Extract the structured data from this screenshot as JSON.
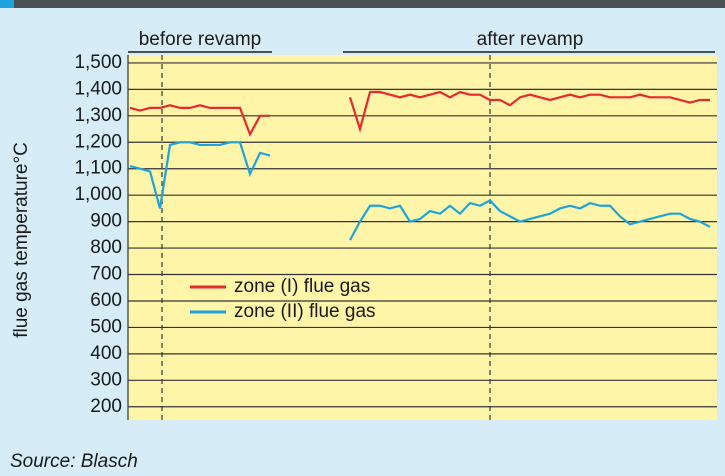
{
  "chart_data": {
    "type": "line",
    "header_labels": [
      "before revamp",
      "after revamp"
    ],
    "ylabel": "flue gas temperature°C",
    "source": "Source: Blasch",
    "x": [
      0,
      1,
      2,
      3,
      4,
      5,
      6,
      7,
      8,
      9,
      10,
      11,
      12,
      13,
      14,
      15,
      16,
      17,
      18,
      19,
      20,
      21,
      22,
      23,
      24,
      25,
      26,
      27,
      28,
      29,
      30,
      31,
      32,
      33,
      34,
      35,
      36,
      37,
      38,
      39,
      40,
      41,
      42,
      43,
      44,
      45,
      46,
      47,
      48,
      49,
      50,
      51,
      52,
      53,
      54,
      55,
      56,
      57,
      58
    ],
    "xlim": [
      -0.2,
      58.7
    ],
    "ylim": [
      150,
      1530
    ],
    "yticks": [
      {
        "value": 1500,
        "label": "1,500"
      },
      {
        "value": 1400,
        "label": "1,400"
      },
      {
        "value": 1300,
        "label": "1,300"
      },
      {
        "value": 1200,
        "label": "1,200"
      },
      {
        "value": 1100,
        "label": "1,100"
      },
      {
        "value": 1000,
        "label": "1,000"
      },
      900,
      800,
      700,
      600,
      500,
      400,
      300,
      200
    ],
    "grid": true,
    "vlines": [
      3.2,
      36
    ],
    "series": [
      {
        "name": "zone (I) flue gas",
        "color": "#e52a2f",
        "values": [
          1330,
          1320,
          1330,
          1330,
          1340,
          1330,
          1330,
          1340,
          1330,
          1330,
          1330,
          1330,
          1230,
          1300,
          1300,
          null,
          null,
          null,
          null,
          null,
          null,
          null,
          1370,
          1250,
          1390,
          1390,
          1380,
          1370,
          1380,
          1370,
          1380,
          1390,
          1370,
          1390,
          1380,
          1380,
          1360,
          1360,
          1340,
          1370,
          1380,
          1370,
          1360,
          1370,
          1380,
          1370,
          1380,
          1380,
          1370,
          1370,
          1370,
          1380,
          1370,
          1370,
          1370,
          1360,
          1350,
          1360,
          1360
        ]
      },
      {
        "name": "zone (II) flue gas",
        "color": "#1ea4dc",
        "values": [
          1110,
          1100,
          1090,
          950,
          1190,
          1200,
          1200,
          1190,
          1190,
          1190,
          1200,
          1200,
          1080,
          1160,
          1150,
          null,
          null,
          null,
          null,
          null,
          null,
          null,
          830,
          900,
          960,
          960,
          950,
          960,
          900,
          910,
          940,
          930,
          960,
          930,
          970,
          960,
          980,
          940,
          920,
          900,
          910,
          920,
          930,
          950,
          960,
          950,
          970,
          960,
          960,
          920,
          890,
          900,
          910,
          920,
          930,
          930,
          910,
          900,
          880
        ]
      }
    ]
  }
}
